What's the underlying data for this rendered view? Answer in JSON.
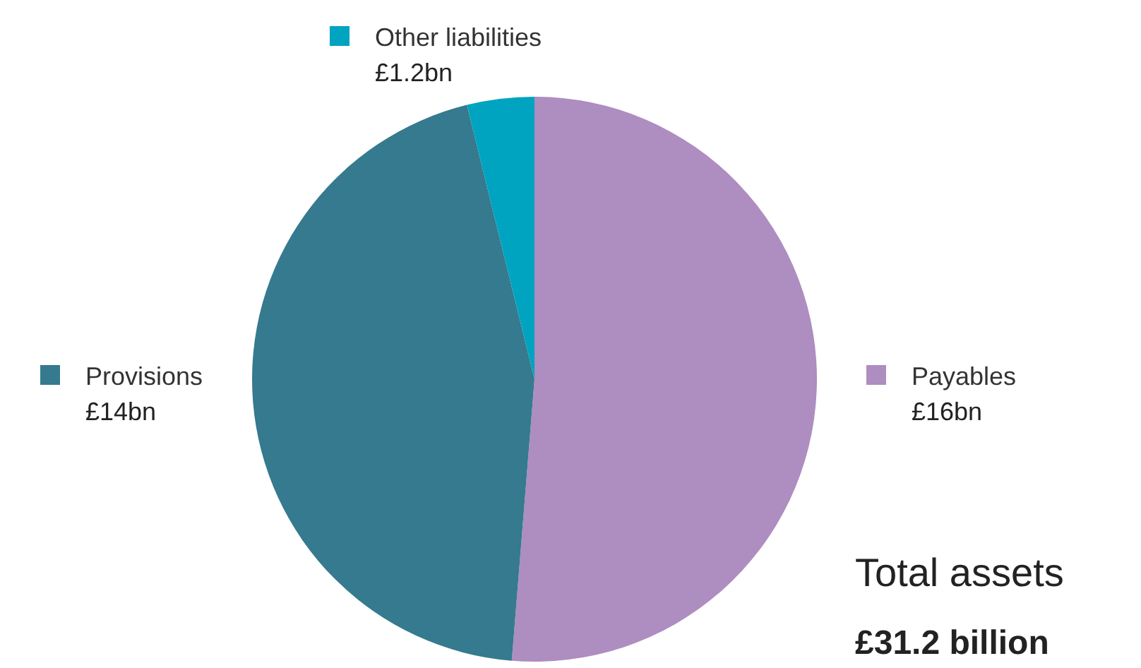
{
  "chart_data": {
    "type": "pie",
    "categories": [
      "Payables",
      "Provisions",
      "Other liabilities"
    ],
    "values": [
      16,
      14,
      1.2
    ],
    "colors": [
      "#ae8dc1",
      "#357a8e",
      "#00a3c0"
    ],
    "value_labels": [
      "£16bn",
      "£14bn",
      "£1.2bn"
    ],
    "annotations": [
      "Total assets",
      "£31.2 billion"
    ],
    "legend": "top left"
  }
}
